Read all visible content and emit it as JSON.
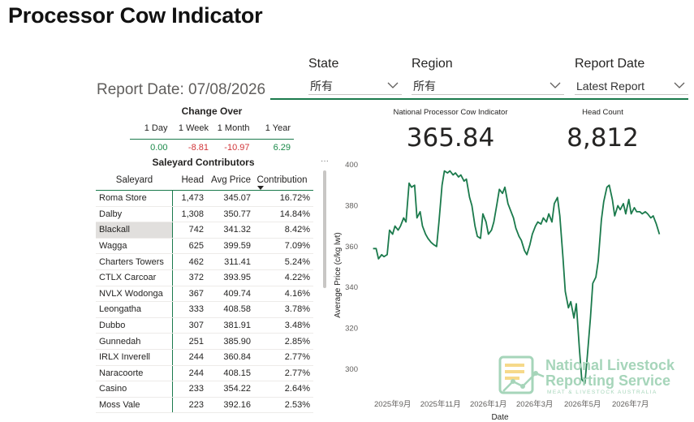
{
  "page": {
    "title": "Processor Cow Indicator"
  },
  "filters": {
    "state": {
      "label": "State",
      "value": "所有"
    },
    "region": {
      "label": "Region",
      "value": "所有"
    },
    "report_date": {
      "label": "Report Date",
      "value": "Latest Report"
    }
  },
  "report_date_text": "Report Date: 07/08/2026",
  "change_over": {
    "title": "Change Over",
    "columns": [
      "1 Day",
      "1 Week",
      "1 Month",
      "1 Year"
    ],
    "values": [
      "0.00",
      "-8.81",
      "-10.97",
      "6.29"
    ]
  },
  "kpis": {
    "indicator": {
      "label": "National Processor Cow Indicator",
      "value": "365.84"
    },
    "head_count": {
      "label": "Head Count",
      "value": "8,812"
    }
  },
  "saleyard_table": {
    "title": "Saleyard Contributors",
    "more": "···",
    "headers": {
      "saleyard": "Saleyard",
      "head": "Head",
      "avg_price": "Avg Price",
      "contribution": "Contribution"
    },
    "rows": [
      {
        "saleyard": "Roma Store",
        "head": "1,473",
        "avg_price": "345.07",
        "contribution": "16.72%"
      },
      {
        "saleyard": "Dalby",
        "head": "1,308",
        "avg_price": "350.77",
        "contribution": "14.84%"
      },
      {
        "saleyard": "Blackall",
        "head": "742",
        "avg_price": "341.32",
        "contribution": "8.42%"
      },
      {
        "saleyard": "Wagga",
        "head": "625",
        "avg_price": "399.59",
        "contribution": "7.09%"
      },
      {
        "saleyard": "Charters Towers",
        "head": "462",
        "avg_price": "311.41",
        "contribution": "5.24%"
      },
      {
        "saleyard": "CTLX Carcoar",
        "head": "372",
        "avg_price": "393.95",
        "contribution": "4.22%"
      },
      {
        "saleyard": "NVLX Wodonga",
        "head": "367",
        "avg_price": "409.74",
        "contribution": "4.16%"
      },
      {
        "saleyard": "Leongatha",
        "head": "333",
        "avg_price": "408.58",
        "contribution": "3.78%"
      },
      {
        "saleyard": "Dubbo",
        "head": "307",
        "avg_price": "381.91",
        "contribution": "3.48%"
      },
      {
        "saleyard": "Gunnedah",
        "head": "251",
        "avg_price": "385.90",
        "contribution": "2.85%"
      },
      {
        "saleyard": "IRLX Inverell",
        "head": "244",
        "avg_price": "360.84",
        "contribution": "2.77%"
      },
      {
        "saleyard": "Naracoorte",
        "head": "244",
        "avg_price": "408.15",
        "contribution": "2.77%"
      },
      {
        "saleyard": "Casino",
        "head": "233",
        "avg_price": "354.22",
        "contribution": "2.64%"
      },
      {
        "saleyard": "Moss Vale",
        "head": "223",
        "avg_price": "392.16",
        "contribution": "2.53%"
      }
    ]
  },
  "chart_data": {
    "type": "line",
    "xlabel": "Date",
    "ylabel": "Average Price (c/kg lwt)",
    "ylim": [
      290,
      402
    ],
    "yticks": [
      300,
      320,
      340,
      360,
      380,
      400
    ],
    "xlim": [
      "2025-07-25",
      "2026-08-20"
    ],
    "xticks": [
      {
        "date": "2025-09-01",
        "label": "2025年9月"
      },
      {
        "date": "2025-11-01",
        "label": "2025年11月"
      },
      {
        "date": "2026-01-01",
        "label": "2026年1月"
      },
      {
        "date": "2026-03-01",
        "label": "2026年3月"
      },
      {
        "date": "2026-05-01",
        "label": "2026年5月"
      },
      {
        "date": "2026-07-01",
        "label": "2026年7月"
      }
    ],
    "color": "#1b7a4c",
    "grid": false,
    "points": [
      [
        "2025-08-07",
        359
      ],
      [
        "2025-08-11",
        359
      ],
      [
        "2025-08-14",
        354
      ],
      [
        "2025-08-18",
        356
      ],
      [
        "2025-08-21",
        355
      ],
      [
        "2025-08-25",
        356
      ],
      [
        "2025-08-28",
        368
      ],
      [
        "2025-09-01",
        366
      ],
      [
        "2025-09-04",
        370
      ],
      [
        "2025-09-08",
        368
      ],
      [
        "2025-09-11",
        370
      ],
      [
        "2025-09-15",
        374
      ],
      [
        "2025-09-18",
        372
      ],
      [
        "2025-09-22",
        391
      ],
      [
        "2025-09-25",
        389
      ],
      [
        "2025-09-29",
        390
      ],
      [
        "2025-10-02",
        374
      ],
      [
        "2025-10-06",
        377
      ],
      [
        "2025-10-09",
        370
      ],
      [
        "2025-10-13",
        366
      ],
      [
        "2025-10-16",
        364
      ],
      [
        "2025-10-20",
        362
      ],
      [
        "2025-10-23",
        361
      ],
      [
        "2025-10-27",
        360
      ],
      [
        "2025-10-30",
        372
      ],
      [
        "2025-11-03",
        390
      ],
      [
        "2025-11-06",
        397
      ],
      [
        "2025-11-10",
        396
      ],
      [
        "2025-11-13",
        397
      ],
      [
        "2025-11-17",
        395
      ],
      [
        "2025-11-20",
        396
      ],
      [
        "2025-11-24",
        394
      ],
      [
        "2025-11-27",
        395
      ],
      [
        "2025-12-01",
        392
      ],
      [
        "2025-12-04",
        393
      ],
      [
        "2025-12-08",
        384
      ],
      [
        "2025-12-11",
        380
      ],
      [
        "2025-12-15",
        370
      ],
      [
        "2025-12-18",
        365
      ],
      [
        "2025-12-22",
        364
      ],
      [
        "2025-12-25",
        376
      ],
      [
        "2025-12-29",
        372
      ],
      [
        "2026-01-01",
        366
      ],
      [
        "2026-01-05",
        368
      ],
      [
        "2026-01-08",
        372
      ],
      [
        "2026-01-12",
        381
      ],
      [
        "2026-01-15",
        388
      ],
      [
        "2026-01-19",
        386
      ],
      [
        "2026-01-22",
        389
      ],
      [
        "2026-01-26",
        381
      ],
      [
        "2026-01-29",
        378
      ],
      [
        "2026-02-02",
        374
      ],
      [
        "2026-02-05",
        369
      ],
      [
        "2026-02-09",
        365
      ],
      [
        "2026-02-12",
        363
      ],
      [
        "2026-02-16",
        358
      ],
      [
        "2026-02-19",
        356
      ],
      [
        "2026-02-23",
        361
      ],
      [
        "2026-02-26",
        366
      ],
      [
        "2026-03-02",
        370
      ],
      [
        "2026-03-05",
        372
      ],
      [
        "2026-03-09",
        371
      ],
      [
        "2026-03-12",
        374
      ],
      [
        "2026-03-16",
        372
      ],
      [
        "2026-03-19",
        376
      ],
      [
        "2026-03-23",
        372
      ],
      [
        "2026-03-26",
        381
      ],
      [
        "2026-03-30",
        384
      ],
      [
        "2026-04-02",
        375
      ],
      [
        "2026-04-06",
        355
      ],
      [
        "2026-04-09",
        338
      ],
      [
        "2026-04-13",
        330
      ],
      [
        "2026-04-16",
        333
      ],
      [
        "2026-04-20",
        325
      ],
      [
        "2026-04-23",
        332
      ],
      [
        "2026-04-27",
        310
      ],
      [
        "2026-04-30",
        295
      ],
      [
        "2026-05-04",
        293
      ],
      [
        "2026-05-07",
        306
      ],
      [
        "2026-05-11",
        325
      ],
      [
        "2026-05-14",
        342
      ],
      [
        "2026-05-18",
        345
      ],
      [
        "2026-05-21",
        353
      ],
      [
        "2026-05-25",
        373
      ],
      [
        "2026-05-28",
        382
      ],
      [
        "2026-06-01",
        389
      ],
      [
        "2026-06-04",
        390
      ],
      [
        "2026-06-08",
        383
      ],
      [
        "2026-06-11",
        375
      ],
      [
        "2026-06-15",
        380
      ],
      [
        "2026-06-18",
        378
      ],
      [
        "2026-06-22",
        381
      ],
      [
        "2026-06-25",
        376
      ],
      [
        "2026-06-29",
        383
      ],
      [
        "2026-07-02",
        376
      ],
      [
        "2026-07-06",
        379
      ],
      [
        "2026-07-09",
        377
      ],
      [
        "2026-07-13",
        377
      ],
      [
        "2026-07-16",
        376
      ],
      [
        "2026-07-20",
        377
      ],
      [
        "2026-07-23",
        376
      ],
      [
        "2026-07-27",
        374
      ],
      [
        "2026-07-30",
        375
      ],
      [
        "2026-08-03",
        371
      ],
      [
        "2026-08-07",
        366
      ]
    ]
  },
  "logo": {
    "line1": "National Livestock",
    "line2": "Reporting Service",
    "tagline": "MEAT & LIVESTOCK AUSTRALIA"
  }
}
